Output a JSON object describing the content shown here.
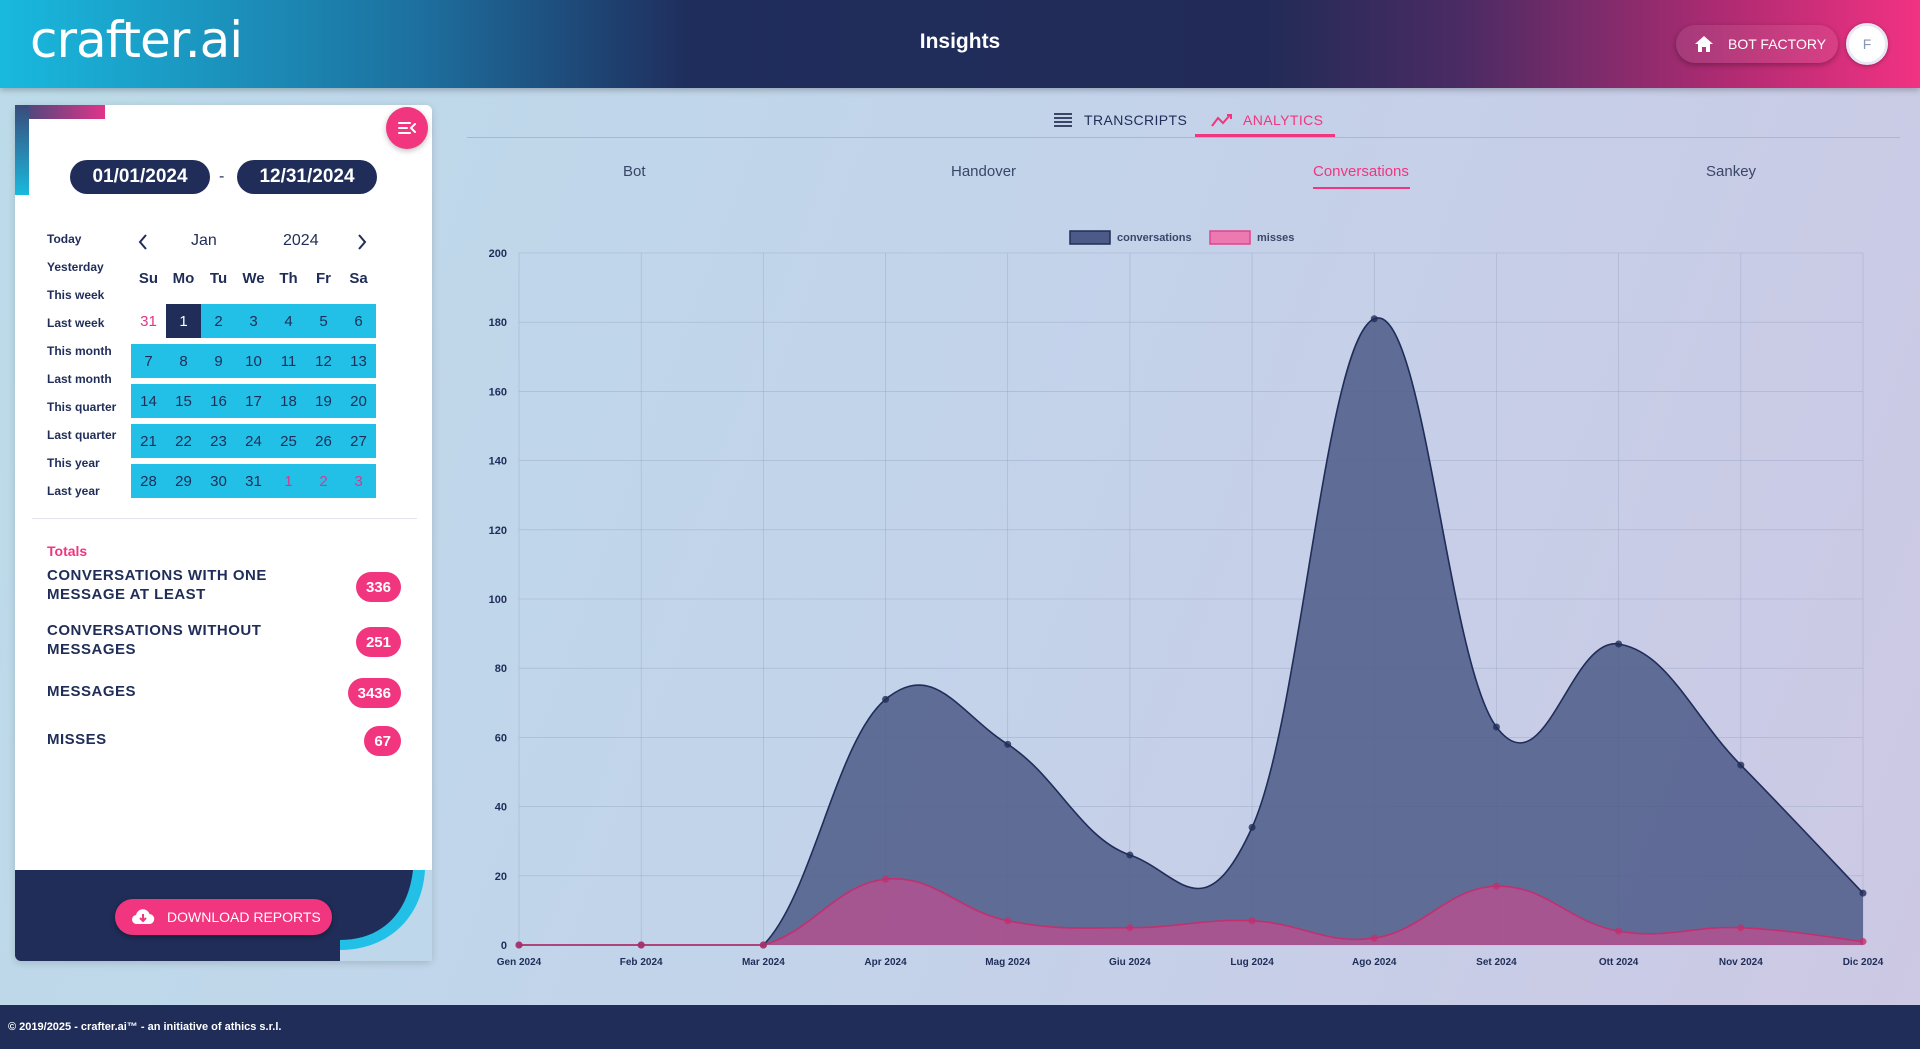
{
  "header": {
    "logo": "crafter.ai",
    "title": "Insights",
    "bot_factory_label": "BOT FACTORY",
    "avatar_initial": "F"
  },
  "date_range": {
    "start": "01/01/2024",
    "separator": "-",
    "end": "12/31/2024"
  },
  "quick_ranges": [
    "Today",
    "Yesterday",
    "This week",
    "Last week",
    "This month",
    "Last month",
    "This quarter",
    "Last quarter",
    "This year",
    "Last year"
  ],
  "calendar": {
    "month": "Jan",
    "year": "2024",
    "weekdays": [
      "Su",
      "Mo",
      "Tu",
      "We",
      "Th",
      "Fr",
      "Sa"
    ],
    "weeks": [
      [
        "31",
        "1",
        "2",
        "3",
        "4",
        "5",
        "6"
      ],
      [
        "7",
        "8",
        "9",
        "10",
        "11",
        "12",
        "13"
      ],
      [
        "14",
        "15",
        "16",
        "17",
        "18",
        "19",
        "20"
      ],
      [
        "21",
        "22",
        "23",
        "24",
        "25",
        "26",
        "27"
      ],
      [
        "28",
        "29",
        "30",
        "31",
        "1",
        "2",
        "3"
      ]
    ],
    "selected_day": "1"
  },
  "totals": {
    "title": "Totals",
    "items": [
      {
        "label": "CONVERSATIONS WITH ONE MESSAGE AT LEAST",
        "value": "336"
      },
      {
        "label": "CONVERSATIONS WITHOUT MESSAGES",
        "value": "251"
      },
      {
        "label": "MESSAGES",
        "value": "3436"
      },
      {
        "label": "MISSES",
        "value": "67"
      }
    ]
  },
  "download_label": "DOWNLOAD REPORTS",
  "tabs": [
    {
      "label": "TRANSCRIPTS",
      "active": false
    },
    {
      "label": "ANALYTICS",
      "active": true
    }
  ],
  "subtabs": [
    {
      "label": "Bot",
      "active": false
    },
    {
      "label": "Handover",
      "active": false
    },
    {
      "label": "Conversations",
      "active": true
    },
    {
      "label": "Sankey",
      "active": false
    }
  ],
  "colors": {
    "accent": "#f1357f",
    "navy": "#1f2d58",
    "calendar_range": "#22c0e6",
    "conversations_fill": "#4c5a87",
    "misses_fill": "#e0448e"
  },
  "chart_data": {
    "type": "area",
    "categories": [
      "Gen 2024",
      "Feb 2024",
      "Mar 2024",
      "Apr 2024",
      "Mag 2024",
      "Giu 2024",
      "Lug 2024",
      "Ago 2024",
      "Set 2024",
      "Ott 2024",
      "Nov 2024",
      "Dic 2024"
    ],
    "series": [
      {
        "name": "conversations",
        "values": [
          0,
          0,
          0,
          71,
          58,
          26,
          34,
          181,
          63,
          87,
          52,
          15
        ]
      },
      {
        "name": "misses",
        "values": [
          0,
          0,
          0,
          19,
          7,
          5,
          7,
          2,
          17,
          4,
          5,
          1
        ]
      }
    ],
    "ylim": [
      0,
      200
    ],
    "yticks": [
      0,
      20,
      40,
      60,
      80,
      100,
      120,
      140,
      160,
      180,
      200
    ],
    "grid": true,
    "legend_position": "top"
  },
  "footer": "© 2019/2025 - crafter.ai™ - an initiative of athics s.r.l."
}
